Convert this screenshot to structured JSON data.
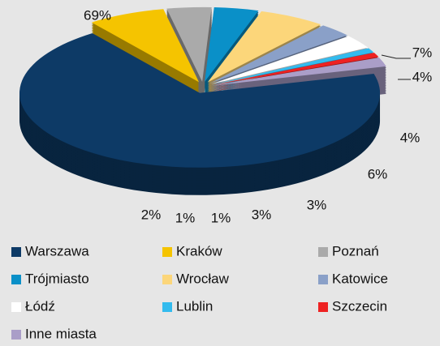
{
  "chart_data": {
    "type": "pie",
    "categories": [
      "Warszawa",
      "Kraków",
      "Poznań",
      "Trójmiasto",
      "Wrocław",
      "Katowice",
      "Łódź",
      "Lublin",
      "Szczecin",
      "Inne miasta"
    ],
    "values": [
      69,
      7,
      4,
      4,
      6,
      3,
      3,
      1,
      1,
      2
    ],
    "value_labels": [
      "69%",
      "7%",
      "4%",
      "4%",
      "6%",
      "3%",
      "3%",
      "1%",
      "1%",
      "2%"
    ],
    "colors": [
      "#0d3a66",
      "#f5c400",
      "#aaaaaa",
      "#0a90c8",
      "#fcd67a",
      "#8aa0c8",
      "#ffffff",
      "#33bbee",
      "#ee2222",
      "#aa9ec8"
    ]
  }
}
